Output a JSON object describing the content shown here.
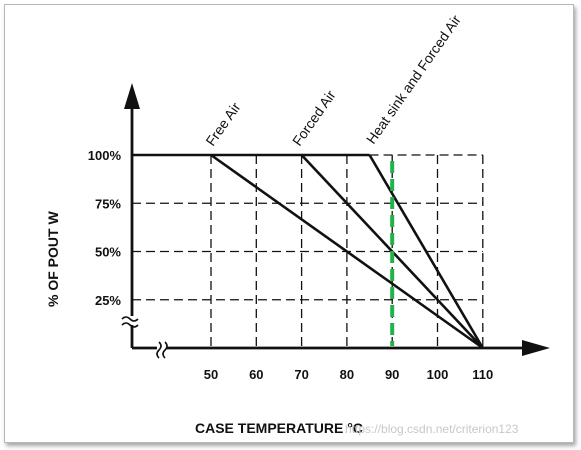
{
  "chart_data": {
    "type": "line",
    "title": "",
    "xlabel": "CASE TEMPERATURE °C",
    "ylabel": "% OF POUT W",
    "xlim": [
      40,
      120
    ],
    "ylim": [
      0,
      100
    ],
    "x_ticks": [
      {
        "value": 50,
        "label": "50"
      },
      {
        "value": 60,
        "label": "60"
      },
      {
        "value": 70,
        "label": "70"
      },
      {
        "value": 80,
        "label": "80"
      },
      {
        "value": 90,
        "label": "90"
      },
      {
        "value": 100,
        "label": "100"
      },
      {
        "value": 110,
        "label": "110"
      }
    ],
    "y_ticks": [
      {
        "value": 25,
        "label": "25%"
      },
      {
        "value": 50,
        "label": "50%"
      },
      {
        "value": 75,
        "label": "75%"
      },
      {
        "value": 100,
        "label": "100%"
      }
    ],
    "grid": true,
    "series": [
      {
        "name": "Free Air",
        "x": [
          50,
          110
        ],
        "y": [
          100,
          0
        ]
      },
      {
        "name": "Forced Air",
        "x": [
          70,
          110
        ],
        "y": [
          100,
          0
        ]
      },
      {
        "name": "Heat sink and Forced Air",
        "x": [
          85,
          110
        ],
        "y": [
          100,
          0
        ]
      }
    ],
    "baseline_100": {
      "x": [
        40,
        85
      ],
      "y": [
        100,
        100
      ]
    },
    "highlight_x": 90,
    "highlight_color": "#22b24c"
  },
  "watermark": "https://blog.csdn.net/criterion123"
}
